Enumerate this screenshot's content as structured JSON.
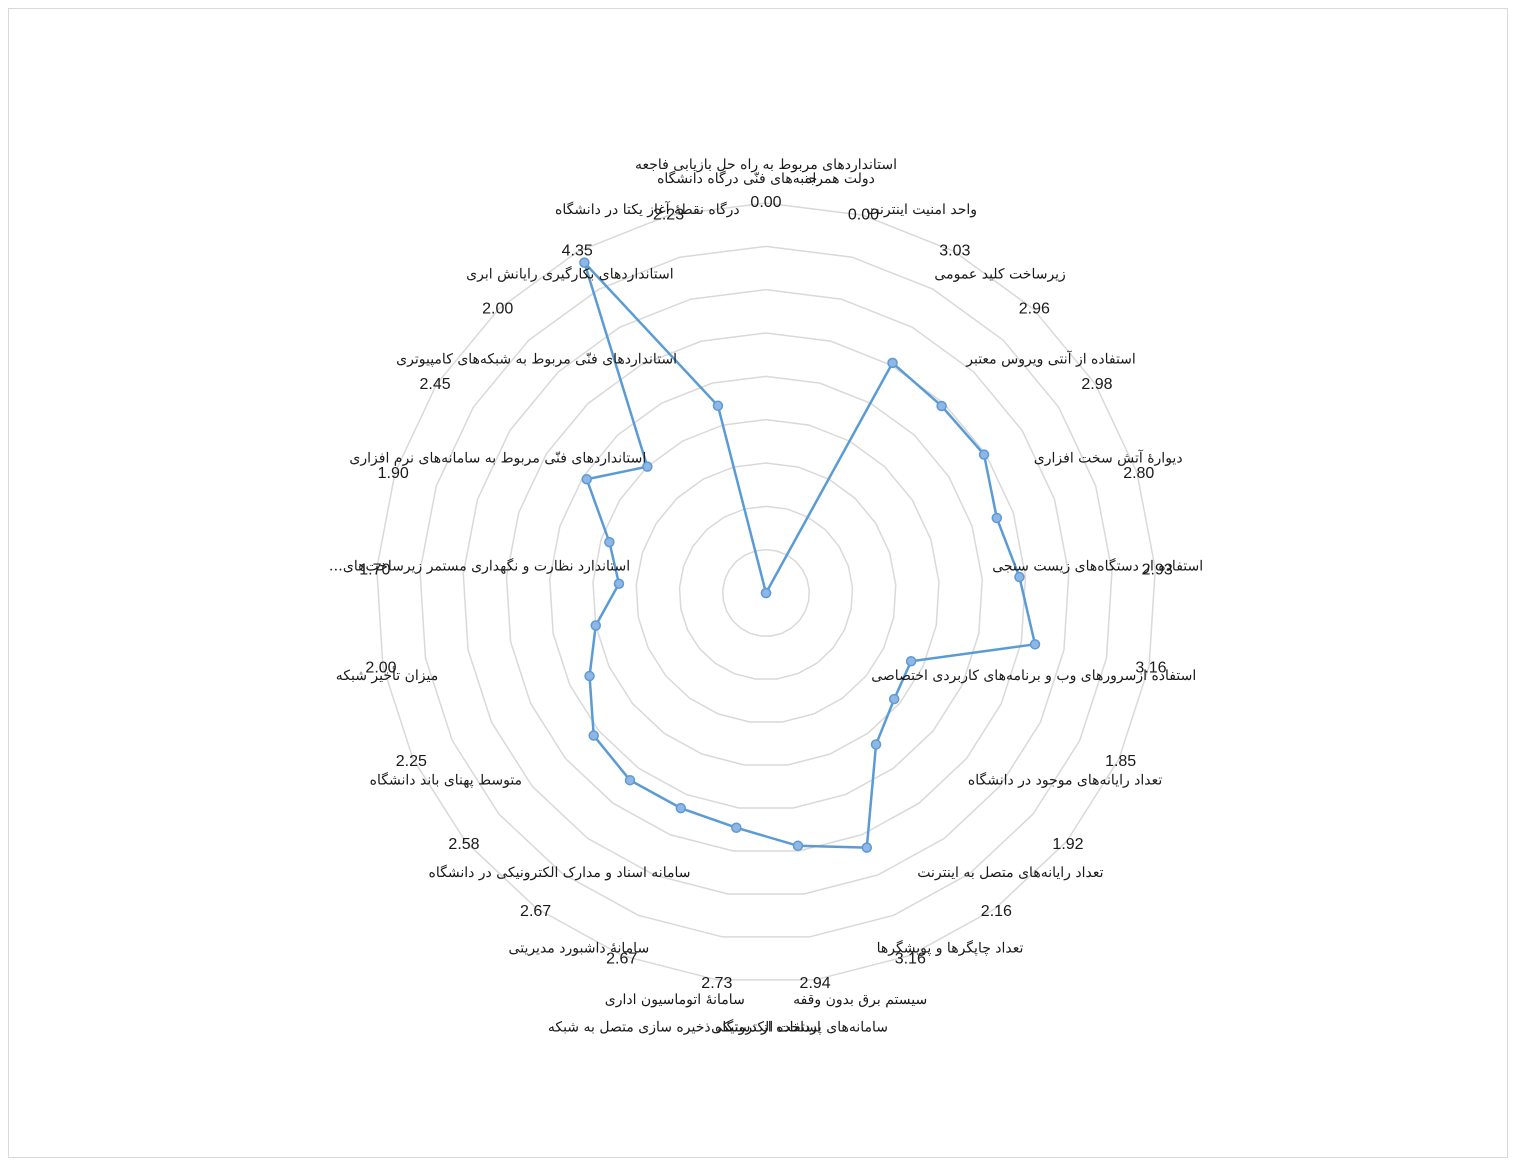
{
  "chart_data": {
    "type": "radar",
    "title": "",
    "legend": "none",
    "grid": true,
    "rmax": 4.5,
    "rings": 9,
    "colors": {
      "line": "#5b9bd5",
      "marker_fill": "#8fb6e4",
      "marker_stroke": "#5b9bd5",
      "grid": "#d9d9d9"
    },
    "categories": [
      "استانداردهای مربوط به راه حل  بازیابی فاجعه",
      "دولت همراه",
      "واحد امنیت اینترنت",
      "زیرساخت کلید عمومی",
      "استفاده از آنتی ویروس معتبر",
      "دیوارۀ آتش سخت افزاری",
      "استفاده از دستگاه‌های زیست سنجی",
      "استفاده ازسرورهای وب و برنامه‌های کاربردی اختصاصی",
      "تعداد رایانه‌های موجود در دانشگاه",
      "تعداد رایانه‌های متصل به اینترنت",
      "تعداد چاپگرها و پویشگرها",
      "سیستم برق بدون وقفه",
      "استفاده از دستگاه ذخیره سازی متصل به شبکه",
      "سامانه‌های پرداخت الکترونیکی",
      "سامانۀ اتوماسیون اداری",
      "سامانۀ داشبورد مدیریتی",
      "سامانه اسناد و مدارک الکترونیکی در دانشگاه",
      "متوسط پهنای باند دانشگاه",
      "میزان تأخیر شبکه",
      "استاندارد نظارت و نگهداری مستمر زیرساخت‌های…",
      "استانداردهای فنّی مربوط به سامانه‌های نرم افزاری",
      "استانداردهای فنّی مربوط به شبکه‌های کامپیوتری",
      "استانداردهای بکارگیری رایانش ابری",
      "درگاه نقطۀ آغاز یکتا در دانشگاه",
      "جنبه‌های فنّی درگاه دانشگاه"
    ],
    "value_labels": [
      "0.00",
      "0.00",
      "3.03",
      "2.96",
      "2.98",
      "2.80",
      "2.93",
      "3.16",
      "1.85",
      "1.92",
      "2.16",
      "3.16",
      "2.94",
      "2.73",
      "2.67",
      "2.67",
      "2.58",
      "2.25",
      "2.00",
      "1.70",
      "1.90",
      "2.45",
      "2.00",
      "4.35",
      "2.23"
    ],
    "series": [
      {
        "values": [
          0.0,
          0.0,
          3.03,
          2.96,
          2.98,
          2.8,
          2.93,
          3.16,
          1.85,
          1.92,
          2.16,
          3.16,
          2.94,
          2.73,
          2.67,
          2.67,
          2.58,
          2.25,
          2.0,
          1.7,
          1.9,
          2.45,
          2.0,
          4.35,
          2.23
        ]
      }
    ]
  }
}
